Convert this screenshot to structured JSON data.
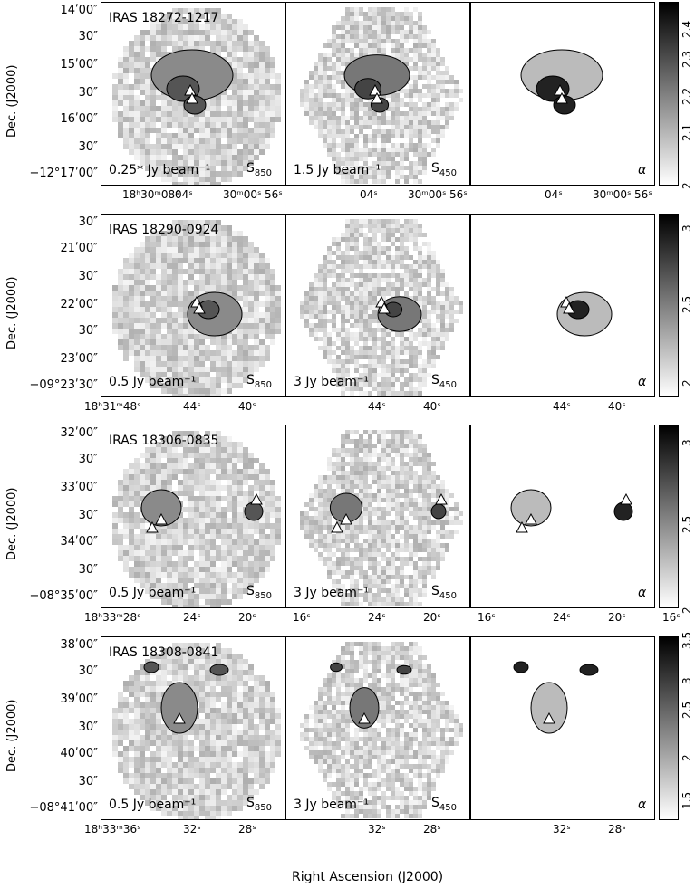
{
  "xlabel": "Right Ascension (J2000)",
  "ylabel": "Dec. (J2000)",
  "rows": [
    {
      "name": "IRAS 18272-1217",
      "dec_ticks": [
        "14ʹ00″",
        "30″",
        "15ʹ00″",
        "30″",
        "16ʹ00″",
        "30″",
        "−12°17ʹ00″"
      ],
      "ra_left": [
        "18ʰ30ᵐ08ˢ",
        "04ˢ",
        "30ᵐ00ˢ",
        "56ˢ"
      ],
      "ra_mid": [
        "04ˢ",
        "30ᵐ00ˢ",
        "56ˢ"
      ],
      "ra_right": [
        "04ˢ",
        "30ᵐ00ˢ",
        "56ˢ"
      ],
      "s850_label": "0.25* Jy beam⁻¹",
      "s450_label": "1.5 Jy beam⁻¹",
      "s850": "S850",
      "s450": "S450",
      "alpha": "α",
      "cbar_ticks": [
        "2.4",
        "2.3",
        "2.2",
        "2.1",
        "2"
      ]
    },
    {
      "name": "IRAS 18290-0924",
      "dec_ticks": [
        "30″",
        "21ʹ00″",
        "30″",
        "22ʹ00″",
        "30″",
        "23ʹ00″",
        "−09°23ʹ30″"
      ],
      "ra_left": [
        "18ʰ31ᵐ48ˢ",
        "44ˢ",
        "40ˢ"
      ],
      "ra_mid": [
        "44ˢ",
        "40ˢ"
      ],
      "ra_right": [
        "44ˢ",
        "40ˢ"
      ],
      "s850_label": "0.5 Jy beam⁻¹",
      "s450_label": "3 Jy beam⁻¹",
      "s850": "S850",
      "s450": "S450",
      "alpha": "α",
      "cbar_ticks": [
        "3",
        "2.5",
        "2"
      ]
    },
    {
      "name": "IRAS 18306-0835",
      "dec_ticks": [
        "32ʹ00″",
        "30″",
        "33ʹ00″",
        "30″",
        "34ʹ00″",
        "30″",
        "−08°35ʹ00″"
      ],
      "ra_left": [
        "18ʰ33ᵐ28ˢ",
        "24ˢ",
        "20ˢ",
        "16ˢ"
      ],
      "ra_mid": [
        "24ˢ",
        "20ˢ",
        "16ˢ"
      ],
      "ra_right": [
        "24ˢ",
        "20ˢ",
        "16ˢ"
      ],
      "s850_label": "0.5 Jy beam⁻¹",
      "s450_label": "3 Jy beam⁻¹",
      "s850": "S850",
      "s450": "S450",
      "alpha": "α",
      "cbar_ticks": [
        "3",
        "2.5",
        "2"
      ]
    },
    {
      "name": "IRAS 18308-0841",
      "dec_ticks": [
        "38ʹ00″",
        "30″",
        "39ʹ00″",
        "30″",
        "40ʹ00″",
        "30″",
        "−08°41ʹ00″"
      ],
      "ra_left": [
        "18ʰ33ᵐ36ˢ",
        "32ˢ",
        "28ˢ"
      ],
      "ra_mid": [
        "32ˢ",
        "28ˢ"
      ],
      "ra_right": [
        "32ˢ",
        "28ˢ"
      ],
      "s850_label": "0.5 Jy beam⁻¹",
      "s450_label": "3 Jy beam⁻¹",
      "s850": "S850",
      "s450": "S450",
      "alpha": "α",
      "cbar_ticks": [
        "3.5",
        "3",
        "2.5",
        "2",
        "1.5"
      ]
    }
  ]
}
